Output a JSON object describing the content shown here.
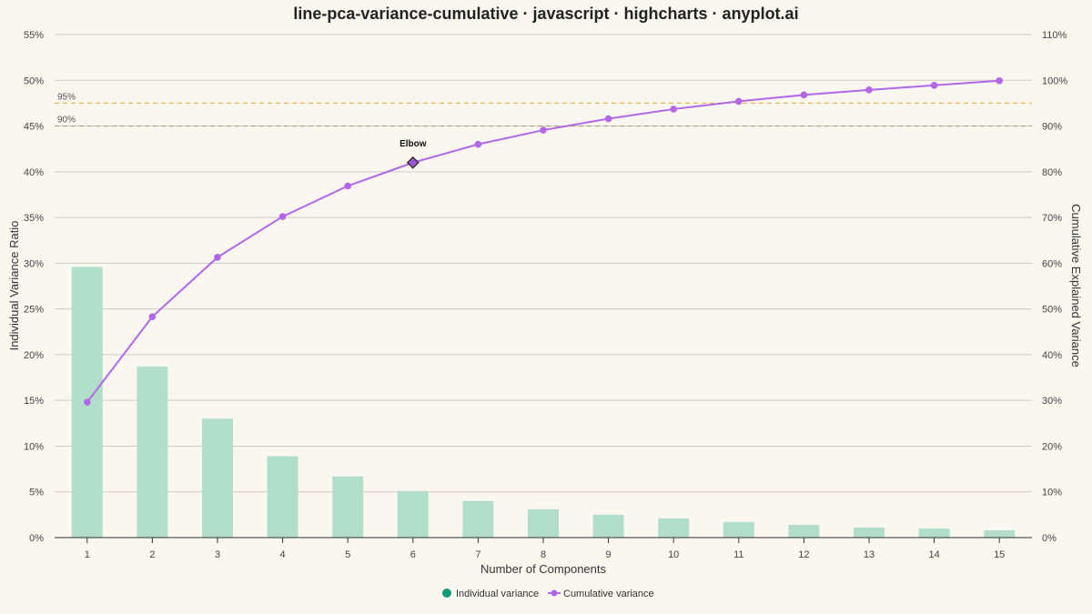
{
  "chart_data": {
    "type": "bar",
    "title": "line-pca-variance-cumulative · javascript · highcharts · anyplot.ai",
    "xlabel": "Number of Components",
    "ylabel_left": "Individual Variance Ratio",
    "ylabel_right": "Cumulative Explained Variance",
    "categories": [
      "1",
      "2",
      "3",
      "4",
      "5",
      "6",
      "7",
      "8",
      "9",
      "10",
      "11",
      "12",
      "13",
      "14",
      "15"
    ],
    "series": [
      {
        "name": "Individual variance",
        "type": "bar",
        "axis": "left",
        "color": "#B0DECB",
        "values": [
          29.6,
          18.7,
          13.0,
          8.9,
          6.7,
          5.1,
          4.0,
          3.1,
          2.5,
          2.1,
          1.7,
          1.4,
          1.1,
          1.0,
          0.8
        ]
      },
      {
        "name": "Cumulative variance",
        "type": "line",
        "axis": "right",
        "color": "#B266E8",
        "values": [
          29.6,
          48.3,
          61.3,
          70.2,
          76.9,
          82.0,
          86.0,
          89.1,
          91.6,
          93.7,
          95.4,
          96.8,
          97.9,
          98.9,
          99.9
        ]
      }
    ],
    "ylim_left": [
      0,
      55
    ],
    "yticks_left": [
      "0%",
      "5%",
      "10%",
      "15%",
      "20%",
      "25%",
      "30%",
      "35%",
      "40%",
      "45%",
      "50%",
      "55%"
    ],
    "ylim_right": [
      0,
      110
    ],
    "yticks_right": [
      "0%",
      "10%",
      "20%",
      "30%",
      "40%",
      "50%",
      "60%",
      "70%",
      "80%",
      "90%",
      "100%",
      "110%"
    ],
    "reference_lines": [
      {
        "label": "95%",
        "value": 95,
        "color": "#E8B94A"
      },
      {
        "label": "90%",
        "value": 90,
        "color": "#A8A06A"
      }
    ],
    "annotation": {
      "label": "Elbow",
      "component": 6,
      "value": 82.0,
      "color": "#9B59D0"
    },
    "legend": {
      "position": "bottom-center",
      "items": [
        {
          "label": "Individual variance",
          "color": "#129C7A",
          "marker": "circle"
        },
        {
          "label": "Cumulative variance",
          "color": "#B266E8",
          "marker": "line-dot"
        }
      ]
    },
    "grid": true,
    "background": "#FAF7F0"
  }
}
